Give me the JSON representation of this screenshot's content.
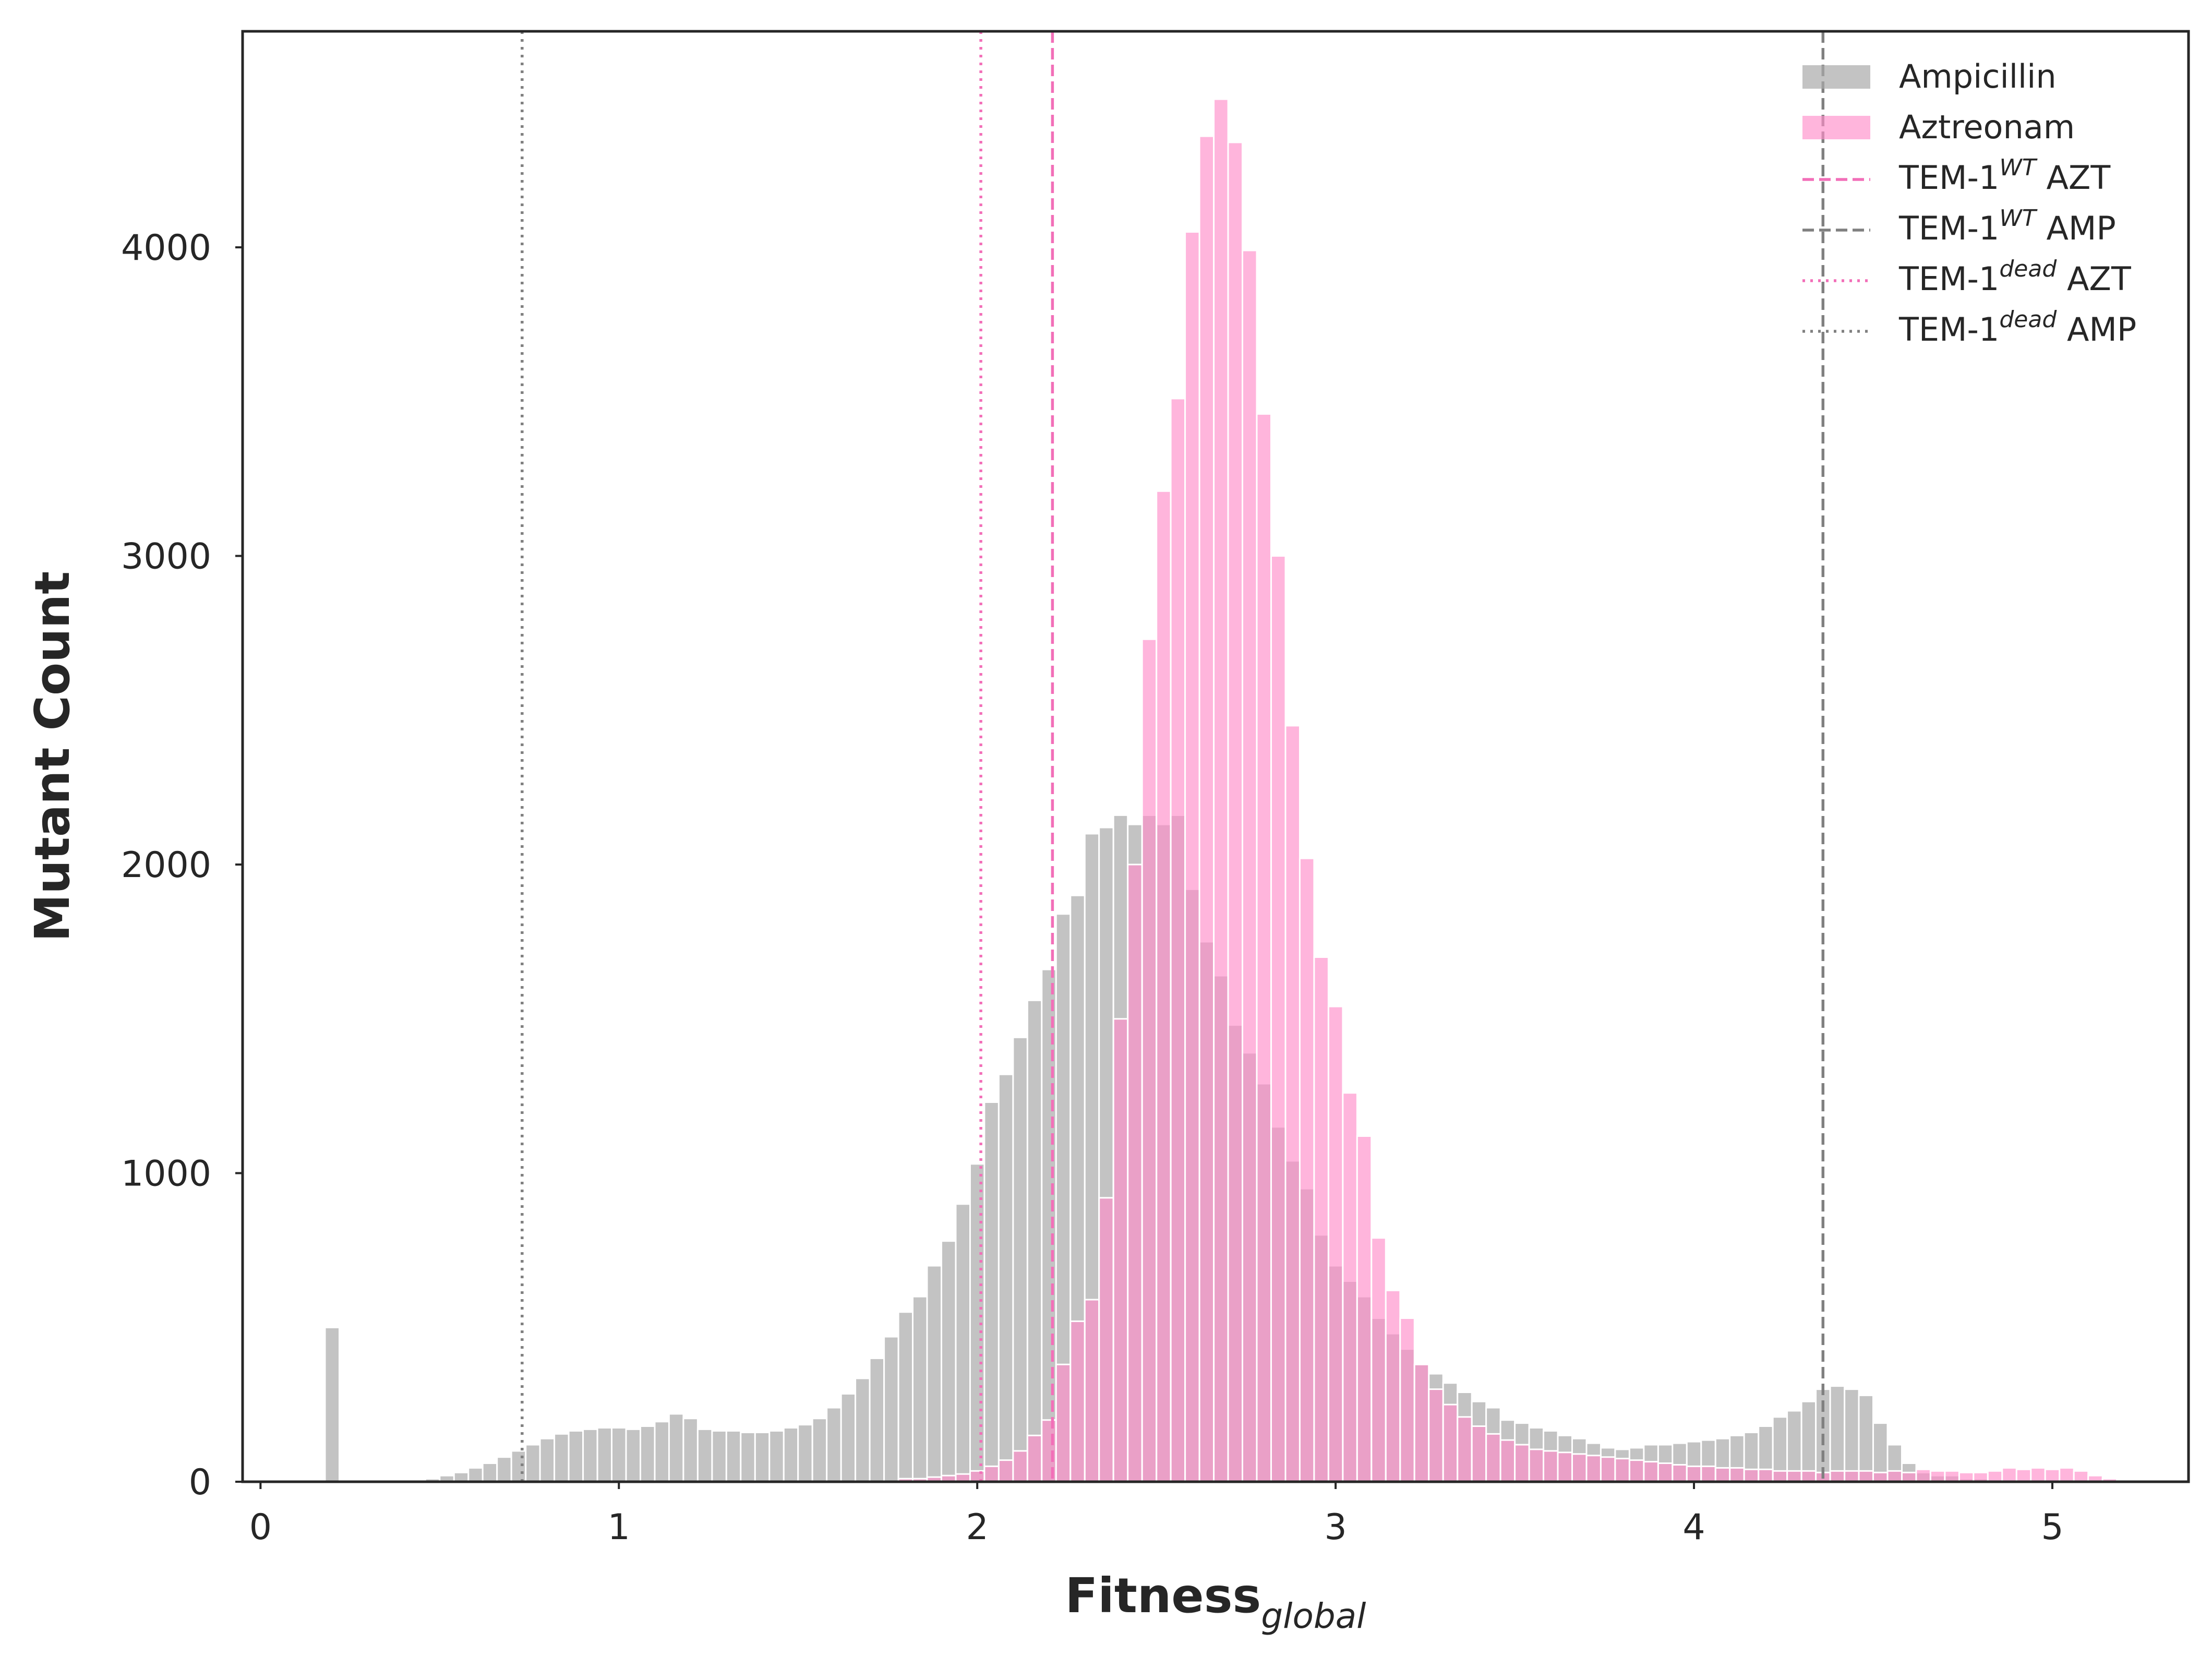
{
  "chart_data": {
    "type": "histogram",
    "xlabel": "Fitness",
    "xlabel_subscript": "global",
    "ylabel": "Mutant Count",
    "xlim": [
      -0.05,
      5.38
    ],
    "ylim": [
      0,
      4700
    ],
    "xticks": [
      0,
      1,
      2,
      3,
      4,
      5
    ],
    "yticks": [
      0,
      1000,
      2000,
      3000,
      4000
    ],
    "grid": false,
    "legend_position": "top-right",
    "bin_start": 0.18,
    "bin_width": 0.04,
    "series": [
      {
        "name": "Ampicillin",
        "color": "#a9a9a9",
        "values": [
          500,
          0,
          0,
          0,
          0,
          0,
          5,
          10,
          20,
          30,
          45,
          60,
          80,
          100,
          120,
          140,
          155,
          165,
          170,
          175,
          175,
          170,
          180,
          195,
          220,
          205,
          170,
          165,
          165,
          160,
          160,
          165,
          175,
          185,
          205,
          240,
          285,
          335,
          400,
          470,
          550,
          600,
          700,
          780,
          900,
          1030,
          1230,
          1320,
          1440,
          1560,
          1660,
          1840,
          1900,
          2100,
          2120,
          2160,
          2130,
          2160,
          2130,
          2160,
          1920,
          1750,
          1640,
          1480,
          1390,
          1290,
          1150,
          1040,
          950,
          800,
          700,
          650,
          600,
          530,
          480,
          430,
          380,
          350,
          320,
          290,
          260,
          240,
          200,
          190,
          175,
          165,
          150,
          140,
          125,
          110,
          105,
          110,
          120,
          120,
          125,
          130,
          135,
          140,
          150,
          160,
          180,
          210,
          230,
          260,
          300,
          310,
          300,
          280,
          190,
          120,
          60,
          30,
          20,
          20,
          10,
          10,
          5,
          5,
          5,
          0,
          0,
          0,
          0,
          0,
          0
        ]
      },
      {
        "name": "Aztreonam",
        "color": "#ff8ec9",
        "values": [
          0,
          0,
          0,
          0,
          0,
          0,
          0,
          0,
          0,
          0,
          0,
          0,
          0,
          0,
          0,
          0,
          0,
          0,
          0,
          0,
          0,
          0,
          0,
          0,
          0,
          0,
          0,
          0,
          0,
          0,
          0,
          0,
          0,
          0,
          0,
          0,
          0,
          0,
          0,
          0,
          10,
          10,
          15,
          20,
          25,
          35,
          50,
          70,
          100,
          150,
          200,
          380,
          520,
          590,
          920,
          1500,
          2000,
          2730,
          3210,
          3510,
          4050,
          4360,
          4480,
          4340,
          3990,
          3460,
          3000,
          2450,
          2020,
          1700,
          1540,
          1260,
          1120,
          790,
          620,
          530,
          380,
          300,
          250,
          210,
          180,
          155,
          135,
          120,
          105,
          100,
          95,
          90,
          85,
          80,
          75,
          70,
          65,
          60,
          55,
          50,
          50,
          45,
          45,
          40,
          40,
          35,
          35,
          35,
          30,
          35,
          35,
          35,
          30,
          35,
          30,
          40,
          35,
          35,
          30,
          30,
          35,
          45,
          40,
          45,
          40,
          45,
          35,
          20,
          10,
          5
        ]
      }
    ],
    "reference_lines": [
      {
        "name": "TEM-1",
        "superscript": "WT",
        "suffix": "AZT",
        "x": 2.21,
        "style": "dashed",
        "color": "#f26fb8"
      },
      {
        "name": "TEM-1",
        "superscript": "WT",
        "suffix": "AMP",
        "x": 4.36,
        "style": "dashed",
        "color": "#808080"
      },
      {
        "name": "TEM-1",
        "superscript": "dead",
        "suffix": "AZT",
        "x": 2.01,
        "style": "dotted",
        "color": "#f26fb8"
      },
      {
        "name": "TEM-1",
        "superscript": "dead",
        "suffix": "AMP",
        "x": 0.73,
        "style": "dotted",
        "color": "#808080"
      }
    ]
  }
}
